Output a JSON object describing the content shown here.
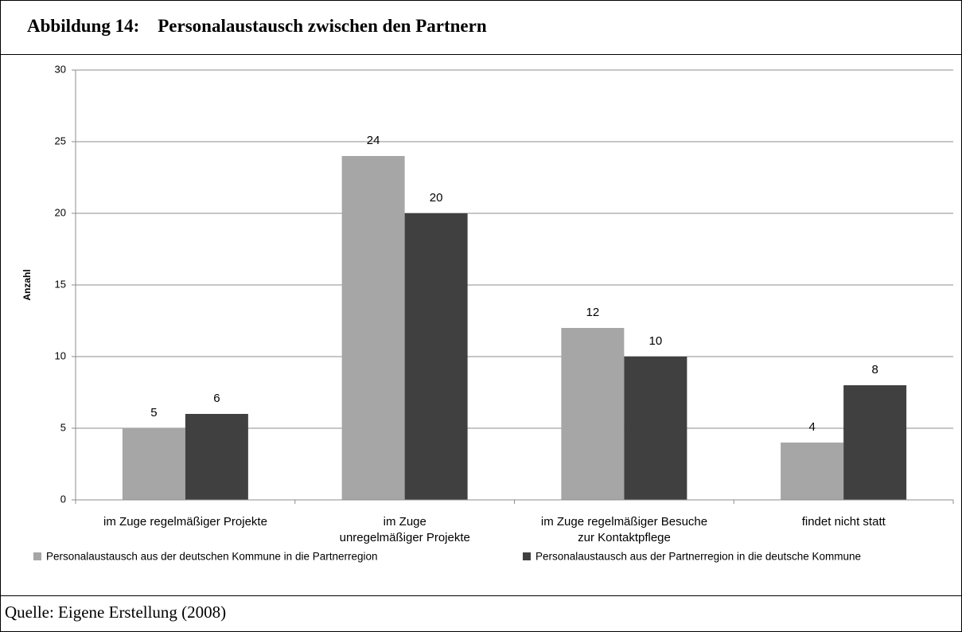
{
  "header": {
    "title": "Abbildung 14:    Personalaustausch zwischen den Partnern"
  },
  "chart_data": {
    "type": "bar",
    "categories": [
      "im Zuge regelmäßiger Projekte",
      "im Zuge\nunregelmäßiger Projekte",
      "im Zuge regelmäßiger Besuche\nzur Kontaktpflege",
      "findet nicht statt"
    ],
    "series": [
      {
        "name": "Personalaustausch aus der deutschen Kommune in die Partnerregion",
        "color": "#a6a6a6",
        "values": [
          5,
          24,
          12,
          4
        ]
      },
      {
        "name": "Personalaustausch aus der Partnerregion in die deutsche Kommune",
        "color": "#404040",
        "values": [
          6,
          20,
          10,
          8
        ]
      }
    ],
    "y_label": "Anzahl",
    "ylim": [
      0,
      30
    ],
    "yticks": [
      0,
      5,
      10,
      15,
      20,
      25,
      30
    ],
    "grid": true,
    "legend": "bottom"
  },
  "footer": {
    "source": "Quelle: Eigene Erstellung (2008)"
  }
}
